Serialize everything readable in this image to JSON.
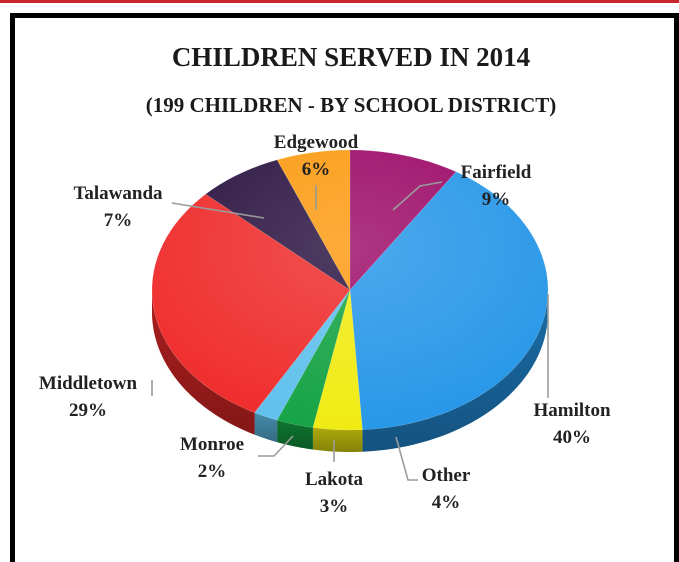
{
  "chart_data": {
    "type": "pie",
    "title": "CHILDREN SERVED IN 2014",
    "subtitle": "(199 CHILDREN - BY SCHOOL DISTRICT)",
    "series": [
      {
        "label": "Fairfield",
        "value": 9,
        "display": "9%",
        "color": "#9c0a67"
      },
      {
        "label": "Hamilton",
        "value": 40,
        "display": "40%",
        "color": "#2596e8"
      },
      {
        "label": "Other",
        "value": 4,
        "display": "4%",
        "color": "#f0eb10"
      },
      {
        "label": "Lakota",
        "value": 3,
        "display": "3%",
        "color": "#13a243"
      },
      {
        "label": "Monroe",
        "value": 2,
        "display": "2%",
        "color": "#5fc0ec"
      },
      {
        "label": "Middletown",
        "value": 29,
        "display": "29%",
        "color": "#ef2a2a"
      },
      {
        "label": "Talawanda",
        "value": 7,
        "display": "7%",
        "color": "#2a1340"
      },
      {
        "label": "Edgewood",
        "value": 6,
        "display": "6%",
        "color": "#fb9a10"
      }
    ]
  }
}
